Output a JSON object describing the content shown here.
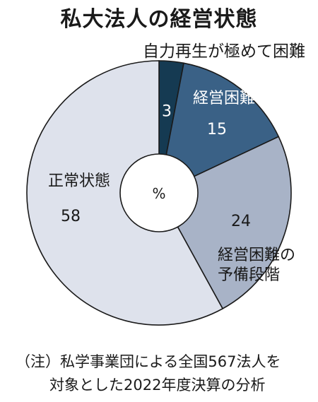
{
  "chart_data": {
    "type": "pie",
    "title": "私大法人の経営状態",
    "unit": "%",
    "slices": [
      {
        "label": "自力再生が極めて困難",
        "value": 3,
        "color": "#153a52"
      },
      {
        "label": "経営困難な状況",
        "value": 15,
        "color": "#3a6186"
      },
      {
        "label": "経営困難の予備段階",
        "value": 24,
        "color": "#a8b3c7"
      },
      {
        "label": "正常状態",
        "value": 58,
        "color": "#dee2ec"
      }
    ]
  },
  "note": {
    "line1": "（注）私学事業団による全国567法人を",
    "line2": "対象とした2022年度決算の分析"
  }
}
